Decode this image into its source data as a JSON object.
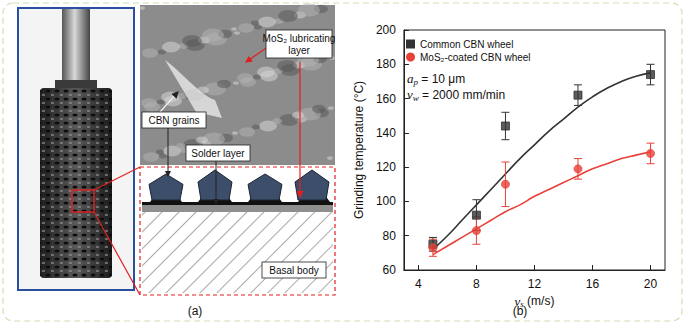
{
  "diagram": {
    "panel_a": {
      "label": "(a)",
      "labels": {
        "grains": "CBN grains",
        "solder": "Solder layer",
        "lubricant": "MoS₂ lubricating layer",
        "body": "Basal body"
      }
    },
    "panel_b": {
      "label": "(b)"
    }
  },
  "chart_data": {
    "type": "scatter",
    "x_label": {
      "symbol": "v",
      "sub": "s",
      "text": " (m/s)"
    },
    "y_label": "Grinding temperature (°C)",
    "xlim": [
      3,
      21
    ],
    "xticks": [
      4,
      8,
      12,
      16,
      20
    ],
    "ylim": [
      60,
      200
    ],
    "yticks": [
      60,
      80,
      100,
      120,
      140,
      160,
      180,
      200
    ],
    "grid": false,
    "legend": "upper left",
    "annotations": [
      {
        "symbol": "a",
        "sub": "p",
        "text": " = 10 μm"
      },
      {
        "symbol": "v",
        "sub": "w",
        "text": " = 2000 mm/min"
      }
    ],
    "series": [
      {
        "name": "Common CBN wheel",
        "color": "#333333",
        "marker": "square",
        "x": [
          5,
          8,
          10,
          15,
          20
        ],
        "values": [
          75,
          92,
          144,
          162,
          174
        ],
        "errors": [
          4,
          9,
          8,
          6,
          6
        ],
        "fit": {
          "x": [
            5,
            6,
            7,
            8,
            9,
            10,
            11,
            12,
            13,
            14,
            15,
            16,
            17,
            18,
            19,
            20
          ],
          "values": [
            72,
            80,
            89,
            98,
            107,
            116,
            125,
            133,
            141,
            148,
            155,
            161,
            166,
            170,
            173,
            175
          ]
        }
      },
      {
        "name": "MoS₂-coated CBN wheel",
        "color": "#e8413a",
        "marker": "circle",
        "x": [
          5,
          8,
          10,
          15,
          20
        ],
        "values": [
          73,
          83,
          110,
          119,
          128
        ],
        "errors": [
          5,
          8,
          13,
          6,
          6
        ],
        "fit": {
          "x": [
            5,
            6,
            7,
            8,
            9,
            10,
            11,
            12,
            13,
            14,
            15,
            16,
            17,
            18,
            19,
            20
          ],
          "values": [
            69,
            74,
            79,
            84,
            89,
            94,
            98,
            103,
            107,
            111,
            115,
            119,
            122,
            125,
            127,
            129
          ]
        }
      }
    ]
  }
}
